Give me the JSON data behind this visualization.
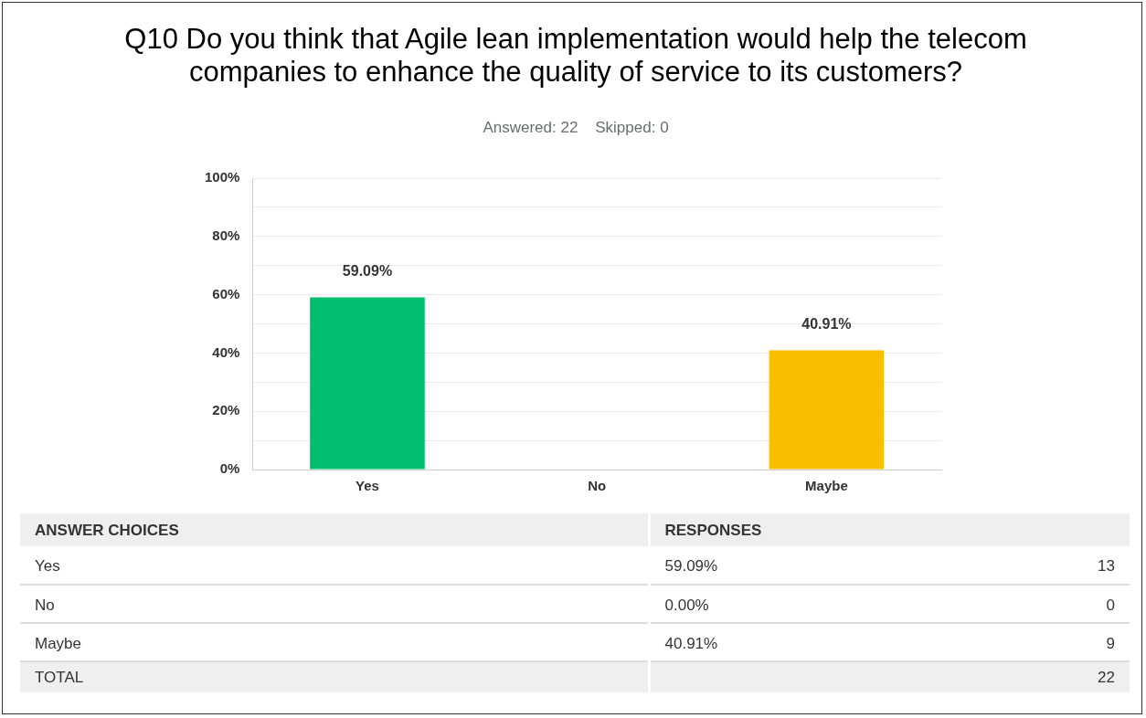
{
  "chart_data": {
    "type": "bar",
    "title": "Q10 Do you think that Agile lean implementation would help the telecom companies to enhance the quality of service to its customers?",
    "subtitle": "Answered: 22    Skipped: 0",
    "categories": [
      "Yes",
      "No",
      "Maybe"
    ],
    "values": [
      59.09,
      0,
      40.91
    ],
    "value_labels": [
      "59.09%",
      null,
      "40.91%"
    ],
    "colors": [
      "#00bf6f",
      "#507cb6",
      "#f9be00"
    ],
    "ylim": [
      0,
      100
    ],
    "yticks": [
      {
        "value": 0,
        "label": "0%"
      },
      {
        "value": 10,
        "label": null
      },
      {
        "value": 20,
        "label": "20%"
      },
      {
        "value": 30,
        "label": null
      },
      {
        "value": 40,
        "label": "40%"
      },
      {
        "value": 50,
        "label": null
      },
      {
        "value": 60,
        "label": "60%"
      },
      {
        "value": 70,
        "label": null
      },
      {
        "value": 80,
        "label": "80%"
      },
      {
        "value": 90,
        "label": null
      },
      {
        "value": 100,
        "label": "100%"
      }
    ],
    "grid": true,
    "annotations": [
      "ANSWER CHOICES",
      "RESPONSES",
      "59.09%",
      "13",
      "0.00%",
      "0",
      "40.91%",
      "9",
      "TOTAL",
      "22"
    ]
  }
}
